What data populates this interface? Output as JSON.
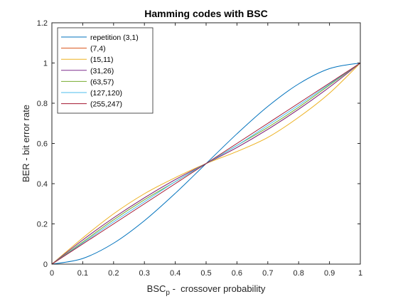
{
  "chart_data": {
    "type": "line",
    "title": "Hamming codes with BSC",
    "xlabel_main": "BSC",
    "xlabel_sub": "p",
    "xlabel_rest": " -  crossover probability",
    "ylabel": "BER - bit error rate",
    "xlim": [
      0,
      1
    ],
    "ylim": [
      0,
      1.2
    ],
    "xticks": [
      0,
      0.1,
      0.2,
      0.3,
      0.4,
      0.5,
      0.6,
      0.7,
      0.8,
      0.9,
      1
    ],
    "xtick_labels": [
      "0",
      "0.1",
      "0.2",
      "0.3",
      "0.4",
      "0.5",
      "0.6",
      "0.7",
      "0.8",
      "0.9",
      "1"
    ],
    "yticks": [
      0,
      0.2,
      0.4,
      0.6,
      0.8,
      1,
      1.2
    ],
    "ytick_labels": [
      "0",
      "0.2",
      "0.4",
      "0.6",
      "0.8",
      "1",
      "1.2"
    ],
    "grid": false,
    "legend_position": "top-left",
    "x": [
      0,
      0.1,
      0.2,
      0.3,
      0.4,
      0.5,
      0.6,
      0.7,
      0.8,
      0.9,
      1
    ],
    "series": [
      {
        "name": "repetition (3,1)",
        "color": "#0072BD",
        "values": [
          0,
          0.028,
          0.104,
          0.216,
          0.352,
          0.5,
          0.648,
          0.784,
          0.896,
          0.972,
          1
        ]
      },
      {
        "name": "(7,4)",
        "color": "#D95319",
        "values": [
          0,
          0.12,
          0.23,
          0.33,
          0.42,
          0.5,
          0.58,
          0.67,
          0.77,
          0.88,
          1
        ]
      },
      {
        "name": "(15,11)",
        "color": "#EDB120",
        "values": [
          0,
          0.13,
          0.25,
          0.35,
          0.43,
          0.5,
          0.56,
          0.63,
          0.73,
          0.85,
          1
        ]
      },
      {
        "name": "(31,26)",
        "color": "#7E2F8E",
        "values": [
          0,
          0.12,
          0.23,
          0.33,
          0.42,
          0.5,
          0.58,
          0.67,
          0.77,
          0.88,
          1
        ]
      },
      {
        "name": "(63,57)",
        "color": "#77AC30",
        "values": [
          0,
          0.11,
          0.22,
          0.32,
          0.41,
          0.5,
          0.59,
          0.68,
          0.78,
          0.89,
          1
        ]
      },
      {
        "name": "(127,120)",
        "color": "#4DBEEE",
        "values": [
          0,
          0.105,
          0.21,
          0.31,
          0.41,
          0.5,
          0.59,
          0.69,
          0.79,
          0.895,
          1
        ]
      },
      {
        "name": "(255,247)",
        "color": "#A2142F",
        "values": [
          0,
          0.1,
          0.2,
          0.3,
          0.4,
          0.5,
          0.6,
          0.7,
          0.8,
          0.9,
          1
        ]
      }
    ]
  }
}
